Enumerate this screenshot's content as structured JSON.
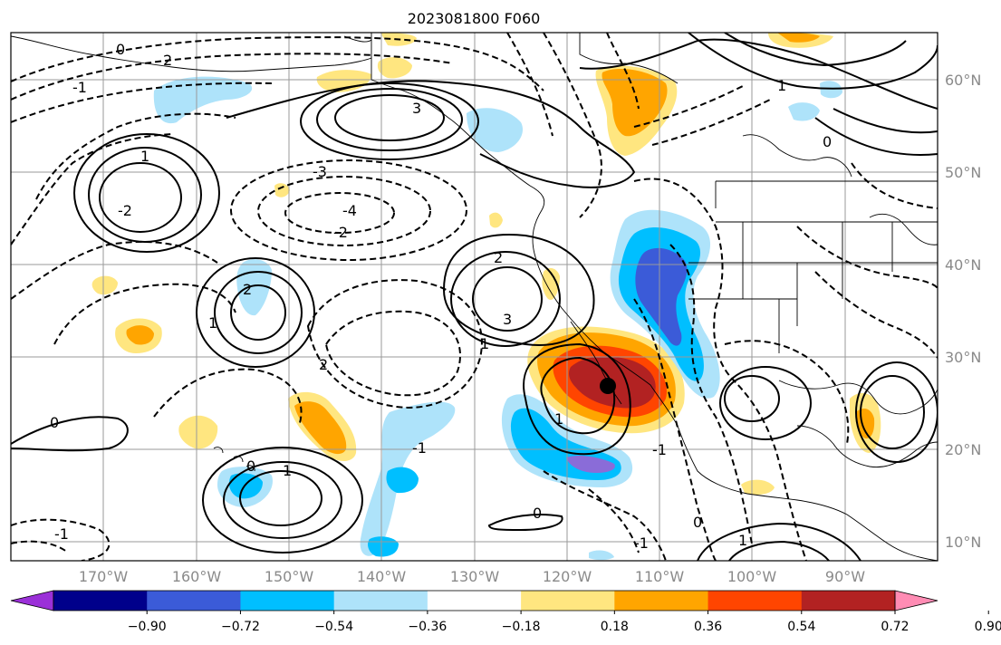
{
  "title": "2023081800 F060",
  "lon_ticks": [
    "170°W",
    "160°W",
    "150°W",
    "140°W",
    "130°W",
    "120°W",
    "110°W",
    "100°W",
    "90°W"
  ],
  "lat_ticks": [
    "60°N",
    "50°N",
    "40°N",
    "30°N",
    "20°N",
    "10°N"
  ],
  "colorbar": {
    "ticks": [
      "−0.90",
      "−0.72",
      "−0.54",
      "−0.36",
      "−0.18",
      "0.18",
      "0.36",
      "0.54",
      "0.72",
      "0.90"
    ],
    "colors": [
      "#9b30d8",
      "#00008b",
      "#3b5bd8",
      "#00bfff",
      "#aee3fa",
      "#ffffff",
      "#ffe680",
      "#ffa500",
      "#ff4500",
      "#b22222",
      "#ff8cb4"
    ]
  },
  "contour_labels": [
    "0",
    "2",
    "1",
    "-1",
    "-2",
    "3",
    "-3",
    "-4",
    "2",
    "-1",
    "0",
    "1",
    "3",
    "-1",
    "1",
    "2",
    "-2",
    "1",
    "0",
    "-1",
    "1",
    "0",
    "0",
    "1",
    "-1",
    "2",
    "0",
    "1"
  ],
  "marker": {
    "lon": -115.0,
    "lat": 26.5,
    "color": "#000000"
  },
  "anomaly_fill_colors": {
    "orange": "#ffa500",
    "yellow": "#ffe680",
    "red": "#ff4500",
    "darkred": "#b22222",
    "lightblue": "#aee3fa",
    "blue": "#00bfff",
    "medblue": "#3b5bd8",
    "purple": "#8a6cd8"
  }
}
